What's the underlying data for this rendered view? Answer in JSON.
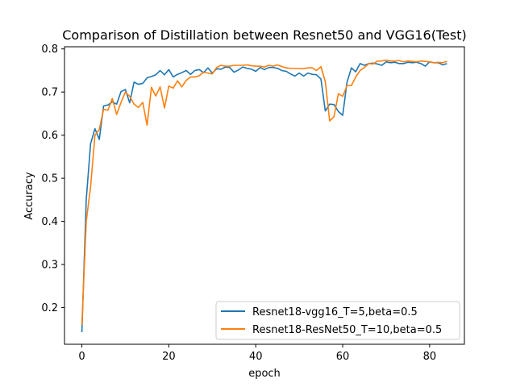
{
  "chart_data": {
    "type": "line",
    "title": "Comparison of Distillation between Resnet50 and VGG16(Test)",
    "xlabel": "epoch",
    "ylabel": "Accuracy",
    "xlim": [
      -4,
      88
    ],
    "ylim": [
      0.115,
      0.805
    ],
    "xticks": [
      0,
      20,
      40,
      60,
      80
    ],
    "yticks": [
      0.2,
      0.3,
      0.4,
      0.5,
      0.6,
      0.7,
      0.8
    ],
    "grid": false,
    "legend_position": "lower-right",
    "series": [
      {
        "name": "Resnet18-vgg16_T=5,beta=0.5",
        "color": "#1f77b4",
        "x": [
          0,
          1,
          2,
          3,
          4,
          5,
          6,
          7,
          8,
          9,
          10,
          11,
          12,
          13,
          14,
          15,
          16,
          17,
          18,
          19,
          20,
          21,
          22,
          23,
          24,
          25,
          26,
          27,
          28,
          29,
          30,
          31,
          32,
          33,
          34,
          35,
          36,
          37,
          38,
          39,
          40,
          41,
          42,
          43,
          44,
          45,
          46,
          47,
          48,
          49,
          50,
          51,
          52,
          53,
          54,
          55,
          56,
          57,
          58,
          59,
          60,
          61,
          62,
          63,
          64,
          65,
          66,
          67,
          68,
          69,
          70,
          71,
          72,
          73,
          74,
          75,
          76,
          77,
          78,
          79,
          80,
          81,
          82,
          83,
          84
        ],
        "y": [
          0.143,
          0.45,
          0.58,
          0.615,
          0.59,
          0.668,
          0.67,
          0.677,
          0.672,
          0.701,
          0.706,
          0.675,
          0.723,
          0.718,
          0.72,
          0.733,
          0.736,
          0.74,
          0.75,
          0.74,
          0.752,
          0.735,
          0.741,
          0.745,
          0.75,
          0.741,
          0.75,
          0.752,
          0.745,
          0.756,
          0.744,
          0.754,
          0.753,
          0.758,
          0.757,
          0.746,
          0.751,
          0.758,
          0.755,
          0.753,
          0.748,
          0.757,
          0.752,
          0.757,
          0.757,
          0.755,
          0.75,
          0.748,
          0.742,
          0.737,
          0.744,
          0.737,
          0.744,
          0.741,
          0.74,
          0.73,
          0.656,
          0.672,
          0.671,
          0.655,
          0.646,
          0.723,
          0.756,
          0.747,
          0.766,
          0.762,
          0.766,
          0.767,
          0.765,
          0.762,
          0.77,
          0.768,
          0.769,
          0.766,
          0.766,
          0.769,
          0.768,
          0.769,
          0.766,
          0.76,
          0.77,
          0.768,
          0.768,
          0.763,
          0.766
        ]
      },
      {
        "name": "Resnet18-ResNet50_T=10,beta=0.5",
        "color": "#ff7f0e",
        "x": [
          0,
          1,
          2,
          3,
          4,
          5,
          6,
          7,
          8,
          9,
          10,
          11,
          12,
          13,
          14,
          15,
          16,
          17,
          18,
          19,
          20,
          21,
          22,
          23,
          24,
          25,
          26,
          27,
          28,
          29,
          30,
          31,
          32,
          33,
          34,
          35,
          36,
          37,
          38,
          39,
          40,
          41,
          42,
          43,
          44,
          45,
          46,
          47,
          48,
          49,
          50,
          51,
          52,
          53,
          54,
          55,
          56,
          57,
          58,
          59,
          60,
          61,
          62,
          63,
          64,
          65,
          66,
          67,
          68,
          69,
          70,
          71,
          72,
          73,
          74,
          75,
          76,
          77,
          78,
          79,
          80,
          81,
          82,
          83,
          84
        ],
        "y": [
          0.16,
          0.4,
          0.48,
          0.6,
          0.613,
          0.66,
          0.658,
          0.685,
          0.648,
          0.676,
          0.7,
          0.69,
          0.672,
          0.664,
          0.676,
          0.623,
          0.711,
          0.691,
          0.712,
          0.663,
          0.714,
          0.709,
          0.726,
          0.712,
          0.727,
          0.735,
          0.735,
          0.738,
          0.746,
          0.744,
          0.742,
          0.757,
          0.762,
          0.76,
          0.76,
          0.762,
          0.762,
          0.762,
          0.763,
          0.761,
          0.76,
          0.76,
          0.758,
          0.762,
          0.76,
          0.763,
          0.759,
          0.756,
          0.755,
          0.755,
          0.755,
          0.754,
          0.756,
          0.756,
          0.75,
          0.759,
          0.724,
          0.633,
          0.643,
          0.696,
          0.69,
          0.715,
          0.715,
          0.735,
          0.75,
          0.757,
          0.766,
          0.765,
          0.772,
          0.772,
          0.774,
          0.772,
          0.772,
          0.773,
          0.77,
          0.772,
          0.771,
          0.77,
          0.772,
          0.771,
          0.77,
          0.768,
          0.769,
          0.768,
          0.771
        ]
      }
    ]
  }
}
